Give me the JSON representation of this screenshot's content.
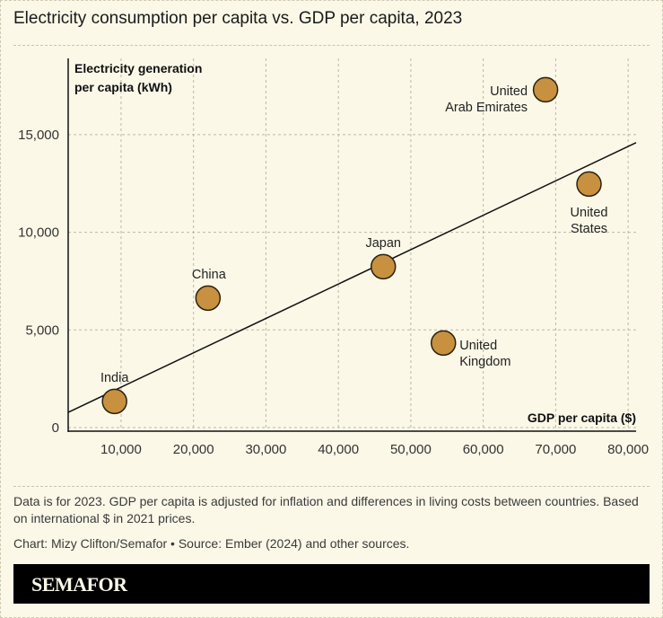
{
  "title": "Electricity consumption per capita vs. GDP per capita, 2023",
  "note": "Data is for 2023. GDP per capita is adjusted for inflation and differences in living costs between countries. Based on international $ in 2021 prices.",
  "credit": "Chart: Mizy Clifton/Semafor • Source: Ember (2024) and other sources.",
  "logo": "SEMAFOR",
  "colors": {
    "background": "#fbf8e8",
    "point_fill": "#c8913f",
    "point_stroke": "#2a2010",
    "trendline": "#111111",
    "grid": "#bdb8a3"
  },
  "chart_data": {
    "type": "scatter",
    "title": "Electricity consumption per capita vs. GDP per capita, 2023",
    "xlabel": "GDP per capita ($)",
    "ylabel_lines": [
      "Electricity generation",
      "per capita (kWh)"
    ],
    "xlim": [
      2700,
      81100
    ],
    "ylim": [
      0,
      18900
    ],
    "x_ticks": [
      10000,
      20000,
      30000,
      40000,
      50000,
      60000,
      70000,
      80000
    ],
    "x_tick_labels": [
      "10,000",
      "20,000",
      "30,000",
      "40,000",
      "50,000",
      "60,000",
      "70,000",
      "80,000"
    ],
    "y_ticks": [
      0,
      5000,
      10000,
      15000
    ],
    "y_tick_labels": [
      "0",
      "5,000",
      "10,000",
      "15,000"
    ],
    "grid": true,
    "points": [
      {
        "label": "India",
        "x": 9100,
        "y": 1340
      },
      {
        "label": "China",
        "x": 22000,
        "y": 6630
      },
      {
        "label": "Japan",
        "x": 46200,
        "y": 8240
      },
      {
        "label": "United Kingdom",
        "label_lines": [
          "United",
          "Kingdom"
        ],
        "x": 54500,
        "y": 4330
      },
      {
        "label": "United Arab Emirates",
        "label_lines": [
          "United",
          "Arab Emirates"
        ],
        "x": 68600,
        "y": 17300
      },
      {
        "label": "United States",
        "label_lines": [
          "United",
          "States"
        ],
        "x": 74600,
        "y": 12470
      }
    ],
    "trendline": {
      "x": [
        2700,
        81100
      ],
      "y": [
        780,
        14590
      ]
    }
  }
}
